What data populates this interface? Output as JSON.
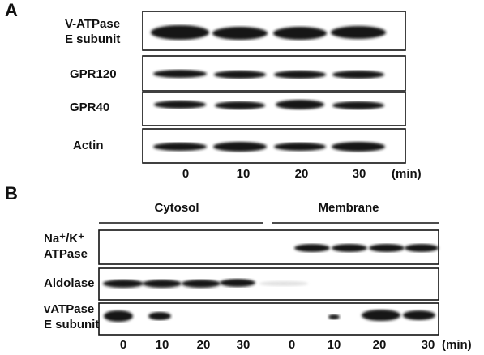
{
  "panel_a": {
    "label": "A",
    "rows": [
      {
        "label_lines": [
          "V-ATPase",
          "E subunit"
        ]
      },
      {
        "label_lines": [
          "GPR120"
        ]
      },
      {
        "label_lines": [
          "GPR40"
        ]
      },
      {
        "label_lines": [
          "Actin"
        ]
      }
    ],
    "lanes": [
      "0",
      "10",
      "20",
      "30"
    ],
    "unit": "(min)"
  },
  "panel_b": {
    "label": "B",
    "groups": [
      "Cytosol",
      "Membrane"
    ],
    "rows": [
      {
        "label_lines": [
          "Na⁺/K⁺",
          "ATPase"
        ]
      },
      {
        "label_lines": [
          "Aldolase"
        ]
      },
      {
        "label_lines": [
          "vATPase",
          "E subunit"
        ]
      }
    ],
    "lanes": [
      "0",
      "10",
      "20",
      "30",
      "0",
      "10",
      "20",
      "30"
    ],
    "unit": "(min)"
  }
}
